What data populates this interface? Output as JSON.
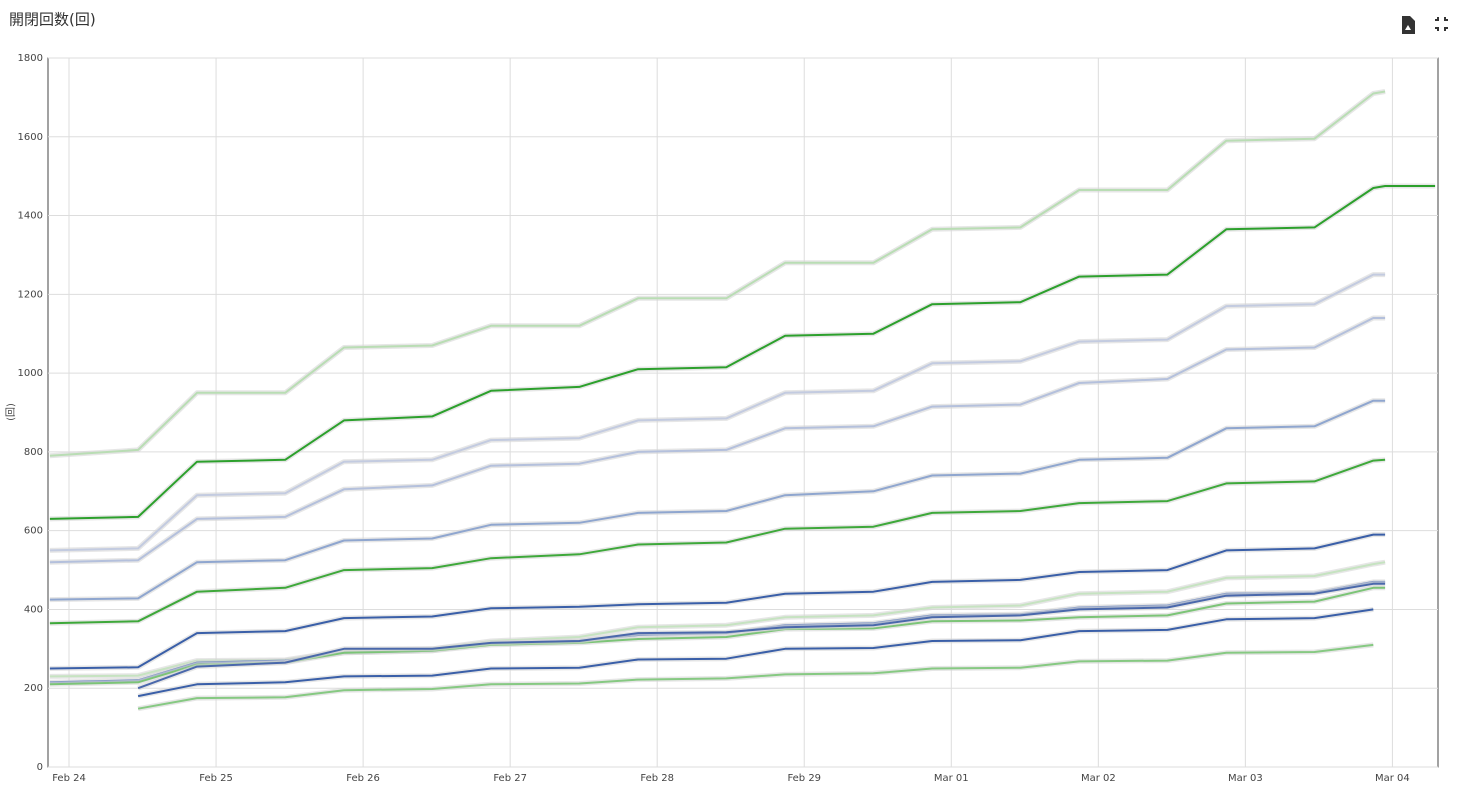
{
  "chart_data": {
    "type": "line",
    "title": "開閉回数(回)",
    "y_label": "(回)",
    "x": [
      -0.13,
      0.47,
      0.87,
      1.47,
      1.87,
      2.47,
      2.87,
      3.47,
      3.87,
      4.47,
      4.87,
      5.47,
      5.87,
      6.47,
      6.87,
      7.47,
      7.87,
      8.47,
      8.87,
      8.95,
      9.29
    ],
    "xlim": [
      -0.143,
      9.31
    ],
    "xticks": [
      {
        "value": 0,
        "label": "Feb 24"
      },
      {
        "value": 1,
        "label": "Feb 25"
      },
      {
        "value": 2,
        "label": "Feb 26"
      },
      {
        "value": 3,
        "label": "Feb 27"
      },
      {
        "value": 4,
        "label": "Feb 28"
      },
      {
        "value": 5,
        "label": "Feb 29"
      },
      {
        "value": 6,
        "label": "Mar 01"
      },
      {
        "value": 7,
        "label": "Mar 02"
      },
      {
        "value": 8,
        "label": "Mar 03"
      },
      {
        "value": 9,
        "label": "Mar 04"
      }
    ],
    "ylim": [
      0,
      1800
    ],
    "yticks": [
      0,
      200,
      400,
      600,
      800,
      1000,
      1200,
      1400,
      1600,
      1800
    ],
    "grid": true,
    "series": [
      {
        "color": "#b9ddb4",
        "values": [
          790,
          805,
          950,
          950,
          1065,
          1070,
          1120,
          1120,
          1190,
          1190,
          1280,
          1280,
          1365,
          1370,
          1465,
          1465,
          1590,
          1595,
          1710,
          1715,
          null
        ]
      },
      {
        "color": "#2ca02c",
        "values": [
          630,
          635,
          775,
          780,
          880,
          890,
          955,
          965,
          1010,
          1015,
          1095,
          1100,
          1175,
          1180,
          1245,
          1250,
          1365,
          1370,
          1470,
          1475,
          1475
        ]
      },
      {
        "color": "#c3cbe0",
        "values": [
          550,
          555,
          690,
          695,
          775,
          780,
          830,
          835,
          880,
          885,
          950,
          955,
          1025,
          1030,
          1080,
          1085,
          1170,
          1175,
          1250,
          1250,
          null
        ]
      },
      {
        "color": "#b4c0dc",
        "values": [
          520,
          525,
          630,
          635,
          705,
          715,
          765,
          770,
          800,
          805,
          860,
          865,
          915,
          920,
          975,
          985,
          1060,
          1065,
          1140,
          1140,
          null
        ]
      },
      {
        "color": "#8fa6cf",
        "values": [
          425,
          428,
          520,
          525,
          575,
          580,
          615,
          620,
          645,
          650,
          690,
          700,
          740,
          745,
          780,
          785,
          860,
          865,
          930,
          930,
          null
        ]
      },
      {
        "color": "#3ea83a",
        "values": [
          365,
          370,
          445,
          455,
          500,
          505,
          530,
          540,
          565,
          570,
          605,
          610,
          645,
          650,
          670,
          675,
          720,
          725,
          778,
          780,
          null
        ]
      },
      {
        "color": "#3a5fa8",
        "values": [
          250,
          253,
          340,
          345,
          378,
          382,
          403,
          407,
          413,
          417,
          440,
          445,
          470,
          475,
          495,
          500,
          550,
          555,
          590,
          590,
          null
        ]
      },
      {
        "color": "#c6e3c1",
        "values": [
          230,
          232,
          270,
          272,
          295,
          300,
          320,
          330,
          355,
          360,
          380,
          385,
          405,
          410,
          440,
          445,
          480,
          485,
          515,
          520,
          null
        ]
      },
      {
        "color": "#6e89c0",
        "values": [
          215,
          220,
          265,
          270,
          290,
          295,
          315,
          320,
          335,
          340,
          360,
          365,
          385,
          388,
          405,
          410,
          440,
          443,
          470,
          470,
          null
        ]
      },
      {
        "color": "#7cc477",
        "values": [
          210,
          215,
          260,
          265,
          290,
          295,
          310,
          315,
          325,
          330,
          350,
          352,
          370,
          372,
          380,
          385,
          415,
          420,
          455,
          455,
          null
        ]
      },
      {
        "color": "#4a68ab",
        "values": [
          null,
          200,
          255,
          265,
          300,
          300,
          315,
          320,
          340,
          342,
          355,
          360,
          380,
          385,
          400,
          405,
          435,
          440,
          465,
          465,
          null
        ]
      },
      {
        "color": "#3a5fa8",
        "values": [
          null,
          180,
          210,
          215,
          230,
          232,
          250,
          252,
          273,
          275,
          300,
          302,
          320,
          322,
          345,
          348,
          375,
          378,
          400,
          null,
          null
        ]
      },
      {
        "color": "#86c982",
        "values": [
          null,
          148,
          175,
          177,
          195,
          198,
          210,
          212,
          222,
          225,
          235,
          238,
          250,
          252,
          268,
          270,
          290,
          292,
          310,
          null,
          null
        ]
      }
    ]
  }
}
